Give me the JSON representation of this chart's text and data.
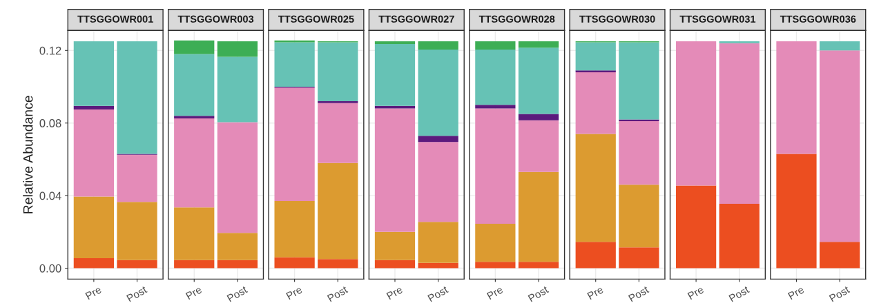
{
  "chart_data": [
    {
      "type": "bar",
      "title": "TTSGGOWR001",
      "ylabel": "Relative Abundance",
      "categories": [
        "Pre",
        "Post"
      ],
      "stacked": true,
      "ylim": [
        -0.006,
        0.131
      ],
      "yticks": [
        {
          "value": 0,
          "label": "0.00"
        },
        {
          "value": 0.04,
          "label": "0.04"
        },
        {
          "value": 0.08,
          "label": "0.08"
        },
        {
          "value": 0.12,
          "label": "0.12"
        }
      ],
      "grid": true,
      "series": [
        {
          "color": "#ec4e20",
          "values": [
            0.0055,
            0.0045
          ]
        },
        {
          "color": "#dc9b30",
          "values": [
            0.034,
            0.032
          ]
        },
        {
          "color": "#e48bb8",
          "values": [
            0.048,
            0.026
          ]
        },
        {
          "color": "#5b1a7d",
          "values": [
            0.002,
            0.0005
          ]
        },
        {
          "color": "#66c2b5",
          "values": [
            0.0355,
            0.062
          ]
        },
        {
          "color": "#3dae55",
          "values": [
            0,
            0
          ]
        }
      ]
    },
    {
      "type": "bar",
      "title": "TTSGGOWR003",
      "categories": [
        "Pre",
        "Post"
      ],
      "stacked": true,
      "ylim": [
        -0.006,
        0.131
      ],
      "tick_labels": "x",
      "grid": true,
      "series": [
        {
          "color": "#ec4e20",
          "values": [
            0.0045,
            0.0045
          ]
        },
        {
          "color": "#dc9b30",
          "values": [
            0.029,
            0.015
          ]
        },
        {
          "color": "#e48bb8",
          "values": [
            0.049,
            0.061
          ]
        },
        {
          "color": "#5b1a7d",
          "values": [
            0.0015,
            0
          ]
        },
        {
          "color": "#66c2b5",
          "values": [
            0.034,
            0.036
          ]
        },
        {
          "color": "#3dae55",
          "values": [
            0.0075,
            0.0085
          ]
        }
      ]
    },
    {
      "type": "bar",
      "title": "TTSGGOWR025",
      "categories": [
        "Pre",
        "Post"
      ],
      "stacked": true,
      "ylim": [
        -0.006,
        0.131
      ],
      "tick_labels": "x",
      "grid": true,
      "series": [
        {
          "color": "#ec4e20",
          "values": [
            0.006,
            0.005
          ]
        },
        {
          "color": "#dc9b30",
          "values": [
            0.031,
            0.053
          ]
        },
        {
          "color": "#e48bb8",
          "values": [
            0.0625,
            0.033
          ]
        },
        {
          "color": "#5b1a7d",
          "values": [
            0.0005,
            0.001
          ]
        },
        {
          "color": "#66c2b5",
          "values": [
            0.0245,
            0.0325
          ]
        },
        {
          "color": "#3dae55",
          "values": [
            0.001,
            0.0005
          ]
        }
      ]
    },
    {
      "type": "bar",
      "title": "TTSGGOWR027",
      "categories": [
        "Pre",
        "Post"
      ],
      "stacked": true,
      "ylim": [
        -0.006,
        0.131
      ],
      "tick_labels": "x",
      "grid": true,
      "series": [
        {
          "color": "#ec4e20",
          "values": [
            0.0045,
            0.003
          ]
        },
        {
          "color": "#dc9b30",
          "values": [
            0.0155,
            0.0225
          ]
        },
        {
          "color": "#e48bb8",
          "values": [
            0.068,
            0.044
          ]
        },
        {
          "color": "#5b1a7d",
          "values": [
            0.0015,
            0.0035
          ]
        },
        {
          "color": "#66c2b5",
          "values": [
            0.034,
            0.0475
          ]
        },
        {
          "color": "#3dae55",
          "values": [
            0.0015,
            0.0045
          ]
        }
      ]
    },
    {
      "type": "bar",
      "title": "TTSGGOWR028",
      "categories": [
        "Pre",
        "Post"
      ],
      "stacked": true,
      "ylim": [
        -0.006,
        0.131
      ],
      "tick_labels": "x",
      "grid": true,
      "series": [
        {
          "color": "#ec4e20",
          "values": [
            0.0035,
            0.0035
          ]
        },
        {
          "color": "#dc9b30",
          "values": [
            0.021,
            0.0495
          ]
        },
        {
          "color": "#e48bb8",
          "values": [
            0.0635,
            0.0285
          ]
        },
        {
          "color": "#5b1a7d",
          "values": [
            0.002,
            0.0035
          ]
        },
        {
          "color": "#66c2b5",
          "values": [
            0.0305,
            0.0365
          ]
        },
        {
          "color": "#3dae55",
          "values": [
            0.0045,
            0.0035
          ]
        }
      ]
    },
    {
      "type": "bar",
      "title": "TTSGGOWR030",
      "categories": [
        "Pre",
        "Post"
      ],
      "stacked": true,
      "ylim": [
        -0.006,
        0.131
      ],
      "tick_labels": "x",
      "grid": true,
      "series": [
        {
          "color": "#ec4e20",
          "values": [
            0.0145,
            0.0115
          ]
        },
        {
          "color": "#dc9b30",
          "values": [
            0.0595,
            0.0345
          ]
        },
        {
          "color": "#e48bb8",
          "values": [
            0.034,
            0.035
          ]
        },
        {
          "color": "#5b1a7d",
          "values": [
            0.001,
            0.001
          ]
        },
        {
          "color": "#66c2b5",
          "values": [
            0.0155,
            0.0425
          ]
        },
        {
          "color": "#3dae55",
          "values": [
            0.0005,
            0.0005
          ]
        }
      ]
    },
    {
      "type": "bar",
      "title": "TTSGGOWR031",
      "categories": [
        "Pre",
        "Post"
      ],
      "stacked": true,
      "ylim": [
        -0.006,
        0.131
      ],
      "tick_labels": "x",
      "grid": true,
      "series": [
        {
          "color": "#ec4e20",
          "values": [
            0.0455,
            0.0355
          ]
        },
        {
          "color": "#dc9b30",
          "values": [
            0,
            0
          ]
        },
        {
          "color": "#e48bb8",
          "values": [
            0.0795,
            0.0885
          ]
        },
        {
          "color": "#5b1a7d",
          "values": [
            0,
            0
          ]
        },
        {
          "color": "#66c2b5",
          "values": [
            0,
            0.001
          ]
        },
        {
          "color": "#3dae55",
          "values": [
            0,
            0
          ]
        }
      ]
    },
    {
      "type": "bar",
      "title": "TTSGGOWR036",
      "categories": [
        "Pre",
        "Post"
      ],
      "stacked": true,
      "ylim": [
        -0.006,
        0.131
      ],
      "tick_labels": "x",
      "grid": true,
      "series": [
        {
          "color": "#ec4e20",
          "values": [
            0.063,
            0.0145
          ]
        },
        {
          "color": "#dc9b30",
          "values": [
            0,
            0
          ]
        },
        {
          "color": "#e48bb8",
          "values": [
            0.062,
            0.1055
          ]
        },
        {
          "color": "#5b1a7d",
          "values": [
            0,
            0
          ]
        },
        {
          "color": "#66c2b5",
          "values": [
            0,
            0.005
          ]
        },
        {
          "color": "#3dae55",
          "values": [
            0,
            0
          ]
        }
      ]
    }
  ]
}
